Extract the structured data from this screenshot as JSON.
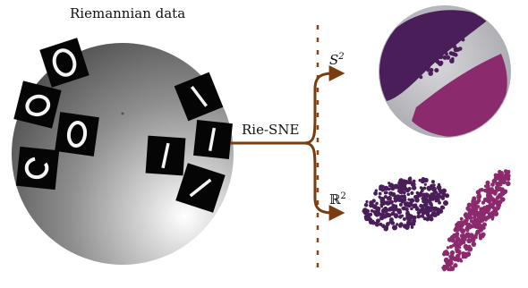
{
  "labels": {
    "title": "Riemannian data",
    "method": "Rie-SNE",
    "sphere_target": "S",
    "sphere_exp": "2",
    "plane_target": "ℝ",
    "plane_exp": "2"
  },
  "digits": {
    "zeros": [
      "0",
      "0",
      "0",
      "0"
    ],
    "ones": [
      "1",
      "1",
      "1",
      "1",
      "1"
    ]
  },
  "colors": {
    "arrow": "#7a3d12",
    "dashed_line": "#8a4513",
    "cluster_a": "#4a1e58",
    "cluster_b": "#8c2a6e",
    "sphere_band": "#bdbdc2"
  }
}
